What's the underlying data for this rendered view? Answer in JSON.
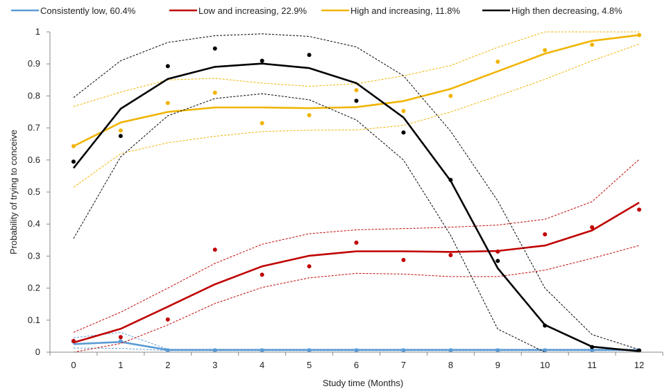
{
  "chart_data": {
    "type": "line",
    "xlabel": "Study time (Months)",
    "ylabel": "Probability of trying to conceive",
    "xlim": [
      0,
      12
    ],
    "ylim": [
      0,
      1
    ],
    "x_ticks": [
      "0",
      "1",
      "2",
      "3",
      "4",
      "5",
      "6",
      "7",
      "8",
      "9",
      "10",
      "11",
      "12"
    ],
    "y_ticks": [
      "0",
      "0.1",
      "0.2",
      "0.3",
      "0.4",
      "0.5",
      "0.6",
      "0.7",
      "0.8",
      "0.9",
      "1"
    ],
    "grid": false,
    "legend_position": "top",
    "x": [
      0,
      1,
      2,
      3,
      4,
      5,
      6,
      7,
      8,
      9,
      10,
      11,
      12
    ],
    "series": [
      {
        "name": "Consistently low, 60.4%",
        "color": "#5b9bd5",
        "fitted": [
          0.025,
          0.032,
          0.007,
          0.007,
          0.007,
          0.007,
          0.007,
          0.007,
          0.007,
          0.007,
          0.007,
          0.007,
          0.007
        ],
        "upper": [
          0.045,
          0.062,
          0.009,
          0.009,
          0.009,
          0.009,
          0.009,
          0.009,
          0.009,
          0.009,
          0.009,
          0.009,
          0.009
        ],
        "lower": [
          0.013,
          0.012,
          0.005,
          0.005,
          0.005,
          0.005,
          0.005,
          0.005,
          0.005,
          0.005,
          0.005,
          0.005,
          0.005
        ],
        "observed": [
          0.033,
          0.034,
          0.006,
          0.006,
          0.006,
          0.006,
          0.006,
          0.006,
          0.006,
          0.006,
          0.006,
          0.006,
          0.006
        ]
      },
      {
        "name": "Low and increasing, 22.9%",
        "color": "#c00000",
        "fitted": [
          0.03,
          0.073,
          0.142,
          0.212,
          0.268,
          0.301,
          0.315,
          0.315,
          0.313,
          0.316,
          0.333,
          0.38,
          0.467
        ],
        "upper": [
          0.062,
          0.125,
          0.2,
          0.277,
          0.337,
          0.37,
          0.382,
          0.386,
          0.39,
          0.397,
          0.415,
          0.47,
          0.602
        ],
        "lower": [
          -0.01,
          0.027,
          0.085,
          0.152,
          0.202,
          0.232,
          0.246,
          0.244,
          0.236,
          0.236,
          0.256,
          0.293,
          0.333
        ],
        "observed": [
          0.035,
          0.047,
          0.102,
          0.32,
          0.242,
          0.268,
          0.342,
          0.288,
          0.303,
          0.314,
          0.368,
          0.39,
          0.445
        ]
      },
      {
        "name": "High and increasing, 11.8%",
        "color": "#f0b400",
        "fitted": [
          0.643,
          0.717,
          0.75,
          0.764,
          0.764,
          0.762,
          0.765,
          0.784,
          0.822,
          0.877,
          0.932,
          0.972,
          0.99
        ],
        "upper": [
          0.767,
          0.812,
          0.85,
          0.855,
          0.84,
          0.83,
          0.838,
          0.863,
          0.895,
          0.952,
          1.0,
          1.0,
          1.0
        ],
        "lower": [
          0.515,
          0.62,
          0.654,
          0.674,
          0.689,
          0.693,
          0.694,
          0.708,
          0.75,
          0.8,
          0.852,
          0.91,
          0.962
        ],
        "observed": [
          0.643,
          0.692,
          0.778,
          0.81,
          0.715,
          0.74,
          0.818,
          0.753,
          0.8,
          0.907,
          0.943,
          0.96,
          0.99
        ]
      },
      {
        "name": "High then decreasing, 4.8%",
        "color": "#000000",
        "fitted": [
          0.575,
          0.76,
          0.853,
          0.891,
          0.901,
          0.887,
          0.84,
          0.733,
          0.535,
          0.262,
          0.085,
          0.017,
          0.003
        ],
        "upper": [
          0.795,
          0.91,
          0.967,
          0.988,
          0.994,
          0.986,
          0.953,
          0.863,
          0.69,
          0.472,
          0.2,
          0.055,
          0.008
        ],
        "lower": [
          0.355,
          0.61,
          0.738,
          0.792,
          0.807,
          0.788,
          0.725,
          0.6,
          0.365,
          0.072,
          -0.003,
          -0.008,
          -0.002
        ],
        "observed": [
          0.595,
          0.675,
          0.893,
          0.948,
          0.91,
          0.928,
          0.785,
          0.686,
          0.538,
          0.285,
          0.083,
          0.016,
          0.005
        ]
      }
    ]
  }
}
